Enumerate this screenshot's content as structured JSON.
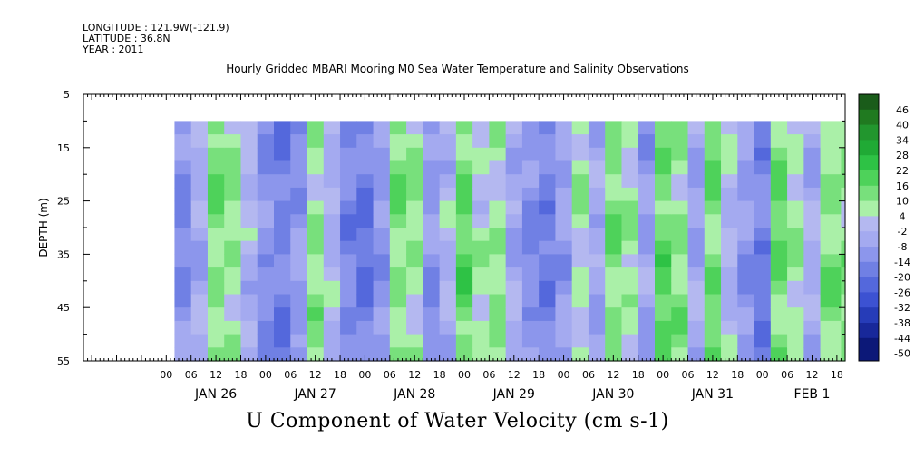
{
  "header": {
    "longitude": "LONGITUDE : 121.9W(-121.9)",
    "latitude": "LATITUDE : 36.8N",
    "year": "YEAR : 2011"
  },
  "title": "Hourly Gridded MBARI Mooring M0 Sea Water Temperature and Salinity Observations",
  "bottom_title": "U Component of Water Velocity (cm s-1)",
  "chart_data": {
    "type": "heatmap",
    "title": "Hourly Gridded MBARI Mooring M0 Sea Water Temperature and Salinity Observations",
    "xlabel": "",
    "ylabel": "DEPTH (m)",
    "y_ticks": [
      5,
      15,
      25,
      35,
      45,
      55
    ],
    "y_range": [
      5,
      55
    ],
    "y_inverted": true,
    "data_depth_range": [
      10,
      55
    ],
    "hour_ticks": [
      "00",
      "06",
      "12",
      "18",
      "00",
      "06",
      "12",
      "18",
      "00",
      "06",
      "12",
      "18",
      "00",
      "06",
      "12",
      "18",
      "00",
      "06",
      "12",
      "18",
      "00",
      "06",
      "12",
      "18",
      "00",
      "06",
      "12",
      "18"
    ],
    "day_labels": [
      "JAN 26",
      "JAN 27",
      "JAN 28",
      "JAN 29",
      "JAN 30",
      "JAN 31",
      "FEB  1"
    ],
    "x_range_hours": [
      -20,
      164
    ],
    "data_hour_range": [
      2,
      163
    ],
    "colorbar": {
      "labels": [
        "46",
        "40",
        "34",
        "28",
        "22",
        "16",
        "10",
        "4",
        "-2",
        "-8",
        "-14",
        "-20",
        "-26",
        "-32",
        "-38",
        "-44",
        "-50"
      ],
      "min": -50,
      "max": 50,
      "step": 6
    },
    "u_velocity_profile": [
      {
        "hour": 2,
        "u": -14
      },
      {
        "hour": 6,
        "u": -6
      },
      {
        "hour": 10,
        "u": 10
      },
      {
        "hour": 14,
        "u": 6
      },
      {
        "hour": 18,
        "u": -4
      },
      {
        "hour": 22,
        "u": -14
      },
      {
        "hour": 26,
        "u": -18
      },
      {
        "hour": 30,
        "u": -12
      },
      {
        "hour": 34,
        "u": 8
      },
      {
        "hour": 38,
        "u": -4
      },
      {
        "hour": 42,
        "u": -16
      },
      {
        "hour": 46,
        "u": -20
      },
      {
        "hour": 50,
        "u": -12
      },
      {
        "hour": 54,
        "u": 10
      },
      {
        "hour": 58,
        "u": 6
      },
      {
        "hour": 62,
        "u": -12
      },
      {
        "hour": 66,
        "u": -4
      },
      {
        "hour": 70,
        "u": 14
      },
      {
        "hour": 74,
        "u": 2
      },
      {
        "hour": 78,
        "u": 6
      },
      {
        "hour": 82,
        "u": -6
      },
      {
        "hour": 86,
        "u": -14
      },
      {
        "hour": 90,
        "u": -18
      },
      {
        "hour": 94,
        "u": -10
      },
      {
        "hour": 98,
        "u": 4
      },
      {
        "hour": 102,
        "u": -8
      },
      {
        "hour": 106,
        "u": 10
      },
      {
        "hour": 110,
        "u": 4
      },
      {
        "hour": 114,
        "u": -10
      },
      {
        "hour": 118,
        "u": 14
      },
      {
        "hour": 122,
        "u": 8
      },
      {
        "hour": 126,
        "u": -8
      },
      {
        "hour": 130,
        "u": 12
      },
      {
        "hour": 134,
        "u": -2
      },
      {
        "hour": 138,
        "u": -12
      },
      {
        "hour": 142,
        "u": -18
      },
      {
        "hour": 146,
        "u": 12
      },
      {
        "hour": 150,
        "u": 4
      },
      {
        "hour": 154,
        "u": -6
      },
      {
        "hour": 158,
        "u": 10
      },
      {
        "hour": 163,
        "u": 8
      }
    ]
  }
}
